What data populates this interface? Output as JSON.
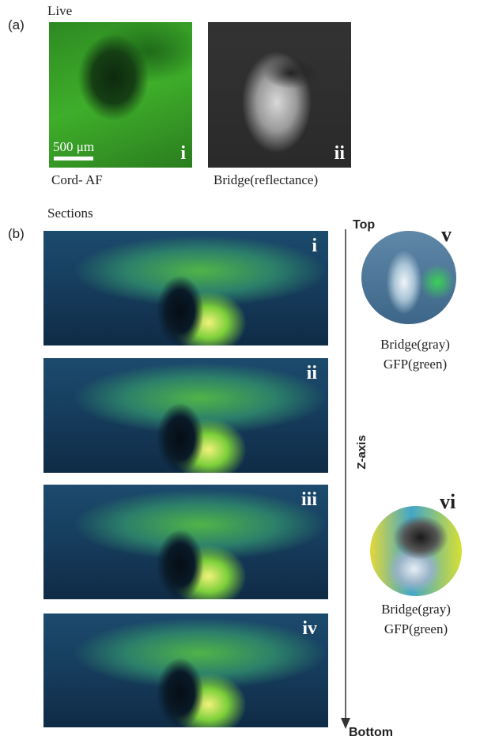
{
  "panel_a": {
    "label": "(a)",
    "title": "Live",
    "images": [
      {
        "label": "i",
        "caption": "Cord- AF",
        "scale_bar": "500 μm"
      },
      {
        "label": "ii",
        "caption": "Bridge(reflectance)"
      }
    ]
  },
  "panel_b": {
    "label": "(b)",
    "title": "Sections",
    "sections": [
      {
        "label": "i"
      },
      {
        "label": "ii"
      },
      {
        "label": "iii"
      },
      {
        "label": "iv"
      }
    ],
    "axis": {
      "top": "Top",
      "bottom": "Bottom",
      "label": "Z-axis"
    },
    "insets": [
      {
        "label": "v",
        "lines": [
          "Bridge(gray)",
          "GFP(green)"
        ]
      },
      {
        "label": "vi",
        "lines": [
          "Bridge(gray)",
          "GFP(green)"
        ]
      }
    ]
  }
}
